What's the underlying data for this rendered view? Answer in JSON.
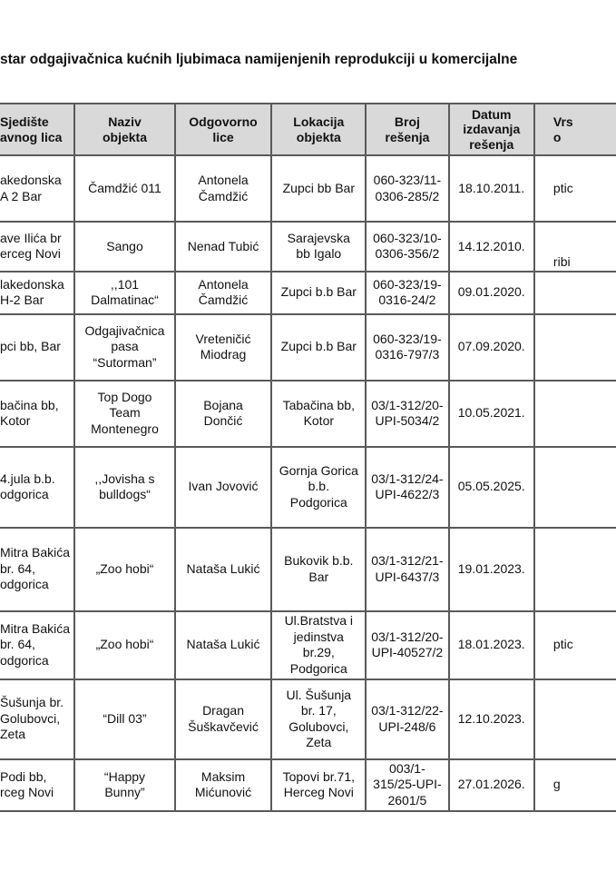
{
  "title": "star odgajivačnica kućnih ljubimaca namijenjenih reprodukciji u komercijalne",
  "table": {
    "headers": [
      "Sjedište\navnog lica",
      "Naziv\nobjekta",
      "Odgovorno\nlice",
      "Lokacija\nobjekta",
      "Broj\nrešenja",
      "Datum\nizdavanja\nrešenja",
      "Vrs\no"
    ],
    "rows": [
      [
        "akedonska\nA 2 Bar",
        "Čamdžić  011",
        "Antonela\nČamdžić",
        "Zupci bb Bar",
        "060-323/11-\n0306-285/2",
        "18.10.2011.",
        "ptic"
      ],
      [
        "ave Ilića br\nerceg Novi",
        "Sango",
        "Nenad Tubić",
        "Sarajevska\nbb Igalo",
        "060-323/10-\n0306-356/2",
        "14.12.2010.",
        "\n\nribi"
      ],
      [
        "lakedonska\nH-2 Bar",
        ",,101\nDalmatinac“",
        "Antonela\nČamdžić",
        "Zupci b.b Bar",
        "060-323/19-\n0316-24/2",
        "09.01.2020.",
        ""
      ],
      [
        "pci bb, Bar",
        "Odgajivačnica\npasa\n“Sutorman”",
        "Vreteničić\nMiodrag",
        "Zupci b.b Bar",
        "060-323/19-\n0316-797/3",
        "07.09.2020.",
        ""
      ],
      [
        "bačina bb,\n  Kotor",
        "Top Dogo\nTeam\nMontenegro",
        "Bojana\nDončić",
        "Tabačina bb,\nKotor",
        "03/1-312/20-\nUPI-5034/2",
        "10.05.2021.",
        ""
      ],
      [
        "4.jula b.b.\nodgorica",
        ",,Jovisha s\nbulldogs“",
        "Ivan Jovović",
        "Gornja Gorica\nb.b.\nPodgorica",
        "03/1-312/24-\nUPI-4622/3",
        "05.05.2025.",
        ""
      ],
      [
        "Mitra Bakića\n br. 64,\nodgorica",
        "„Zoo hobi“",
        "Nataša Lukić",
        "Bukovik b.b.\nBar",
        "03/1-312/21-\nUPI-6437/3",
        "19.01.2023.",
        ""
      ],
      [
        "Mitra Bakića\n br. 64,\nodgorica",
        "„Zoo hobi“",
        "Nataša Lukić",
        "Ul.Bratstva i\njedinstva\nbr.29,\nPodgorica",
        "03/1-312/20-\nUPI-40527/2",
        "18.01.2023.",
        "ptic"
      ],
      [
        "Šušunja br.\n Golubovci,\n   Zeta",
        "“Dill 03”",
        "Dragan\nŠuškavčević",
        "Ul. Šušunja\nbr. 17,\nGolubovci,\nZeta",
        "03/1-312/22-\nUPI-248/6",
        "12.10.2023.",
        ""
      ],
      [
        "Podi bb,\nrceg Novi",
        "“Happy\nBunny”",
        "Maksim\nMićunović",
        "Topovi br.71,\nHerceg Novi",
        "003/1-\n315/25-UPI-\n2601/5",
        "27.01.2026.",
        "   g"
      ]
    ]
  }
}
